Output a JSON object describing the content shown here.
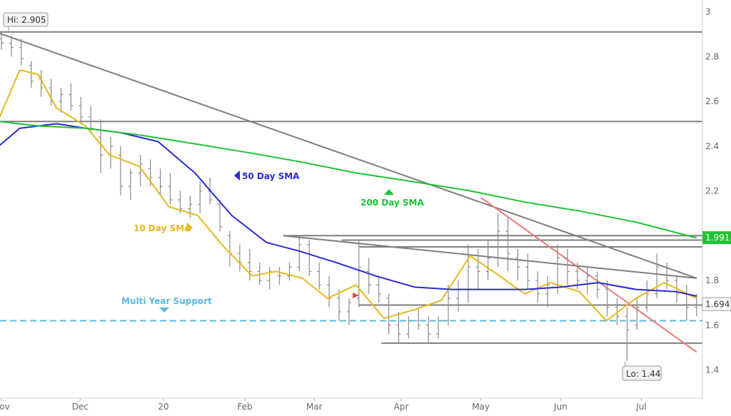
{
  "chart_data": {
    "type": "line",
    "title": "",
    "xlabel": "",
    "ylabel": "",
    "x_ticks": [
      "Nov",
      "Dec",
      "20",
      "Feb",
      "Mar",
      "Apr",
      "May",
      "Jun",
      "Jul"
    ],
    "y_ticks": [
      "3",
      "2.8",
      "2.6",
      "2.4",
      "2.2",
      "1.8",
      "1.6",
      "1.4"
    ],
    "ylim": [
      1.3,
      3.02
    ],
    "grid": false,
    "price_bars_ohlc": [
      [
        2.88,
        2.91,
        2.83,
        2.86
      ],
      [
        2.86,
        2.89,
        2.8,
        2.84
      ],
      [
        2.84,
        2.88,
        2.76,
        2.79
      ],
      [
        2.76,
        2.78,
        2.66,
        2.69
      ],
      [
        2.7,
        2.74,
        2.62,
        2.66
      ],
      [
        2.66,
        2.7,
        2.58,
        2.6
      ],
      [
        2.6,
        2.66,
        2.55,
        2.63
      ],
      [
        2.63,
        2.68,
        2.56,
        2.58
      ],
      [
        2.58,
        2.62,
        2.5,
        2.53
      ],
      [
        2.53,
        2.58,
        2.46,
        2.48
      ],
      [
        2.44,
        2.52,
        2.28,
        2.36
      ],
      [
        2.36,
        2.44,
        2.3,
        2.4
      ],
      [
        2.36,
        2.4,
        2.18,
        2.22
      ],
      [
        2.22,
        2.3,
        2.16,
        2.28
      ],
      [
        2.28,
        2.36,
        2.22,
        2.32
      ],
      [
        2.3,
        2.34,
        2.22,
        2.26
      ],
      [
        2.26,
        2.3,
        2.18,
        2.22
      ],
      [
        2.22,
        2.28,
        2.14,
        2.16
      ],
      [
        2.16,
        2.2,
        2.1,
        2.12
      ],
      [
        2.12,
        2.18,
        2.08,
        2.14
      ],
      [
        2.14,
        2.24,
        2.1,
        2.2
      ],
      [
        2.2,
        2.26,
        2.14,
        2.16
      ],
      [
        2.14,
        2.16,
        2.02,
        2.04
      ],
      [
        2.0,
        2.02,
        1.86,
        1.92
      ],
      [
        1.92,
        1.96,
        1.84,
        1.88
      ],
      [
        1.88,
        1.94,
        1.8,
        1.84
      ],
      [
        1.84,
        1.88,
        1.78,
        1.8
      ],
      [
        1.8,
        1.86,
        1.76,
        1.84
      ],
      [
        1.82,
        1.86,
        1.78,
        1.82
      ],
      [
        1.82,
        1.88,
        1.8,
        1.86
      ],
      [
        1.86,
        2.0,
        1.84,
        1.96
      ],
      [
        1.96,
        1.98,
        1.82,
        1.84
      ],
      [
        1.84,
        1.88,
        1.76,
        1.78
      ],
      [
        1.78,
        1.82,
        1.68,
        1.72
      ],
      [
        1.72,
        1.76,
        1.62,
        1.66
      ],
      [
        1.66,
        1.72,
        1.6,
        1.7
      ],
      [
        1.72,
        1.98,
        1.68,
        1.86
      ],
      [
        1.84,
        1.9,
        1.74,
        1.78
      ],
      [
        1.78,
        1.82,
        1.7,
        1.74
      ],
      [
        1.72,
        1.74,
        1.56,
        1.6
      ],
      [
        1.6,
        1.66,
        1.52,
        1.56
      ],
      [
        1.56,
        1.64,
        1.54,
        1.62
      ],
      [
        1.62,
        1.68,
        1.58,
        1.6
      ],
      [
        1.6,
        1.64,
        1.52,
        1.56
      ],
      [
        1.56,
        1.64,
        1.54,
        1.62
      ],
      [
        1.62,
        1.78,
        1.6,
        1.72
      ],
      [
        1.72,
        1.8,
        1.66,
        1.76
      ],
      [
        1.76,
        1.96,
        1.7,
        1.86
      ],
      [
        1.86,
        1.94,
        1.76,
        1.84
      ],
      [
        1.84,
        1.98,
        1.8,
        1.9
      ],
      [
        1.9,
        2.1,
        1.86,
        2.02
      ],
      [
        2.02,
        2.08,
        1.84,
        1.92
      ],
      [
        1.9,
        1.94,
        1.8,
        1.86
      ],
      [
        1.86,
        1.92,
        1.76,
        1.8
      ],
      [
        1.8,
        1.84,
        1.7,
        1.74
      ],
      [
        1.74,
        1.82,
        1.68,
        1.78
      ],
      [
        1.78,
        1.96,
        1.74,
        1.9
      ],
      [
        1.9,
        1.94,
        1.78,
        1.84
      ],
      [
        1.84,
        1.88,
        1.76,
        1.8
      ],
      [
        1.8,
        1.86,
        1.74,
        1.82
      ],
      [
        1.82,
        1.84,
        1.72,
        1.76
      ],
      [
        1.76,
        1.8,
        1.64,
        1.68
      ],
      [
        1.68,
        1.72,
        1.6,
        1.64
      ],
      [
        1.64,
        1.68,
        1.44,
        1.58
      ],
      [
        1.6,
        1.72,
        1.58,
        1.68
      ],
      [
        1.68,
        1.8,
        1.66,
        1.74
      ],
      [
        1.74,
        1.92,
        1.72,
        1.86
      ],
      [
        1.86,
        1.88,
        1.76,
        1.8
      ],
      [
        1.8,
        1.82,
        1.7,
        1.74
      ],
      [
        1.74,
        1.78,
        1.62,
        1.68
      ],
      [
        1.68,
        1.74,
        1.64,
        1.69
      ]
    ],
    "series": [
      {
        "name": "10 Day SMA",
        "color": "#e5b81f",
        "x": [
          "2019-10-31",
          "2019-11-08",
          "2019-11-15",
          "2019-11-22",
          "2019-12-03",
          "2019-12-12",
          "2019-12-23",
          "2020-01-03",
          "2020-01-14",
          "2020-01-24",
          "2020-02-04",
          "2020-02-14",
          "2020-02-25",
          "2020-03-06",
          "2020-03-16",
          "2020-03-26",
          "2020-04-06",
          "2020-04-16",
          "2020-04-27",
          "2020-05-07",
          "2020-05-18",
          "2020-05-28",
          "2020-06-08",
          "2020-06-18",
          "2020-06-29",
          "2020-07-09",
          "2020-07-20"
        ],
        "values": [
          2.52,
          2.74,
          2.72,
          2.57,
          2.49,
          2.36,
          2.31,
          2.13,
          2.09,
          1.95,
          1.82,
          1.84,
          1.81,
          1.72,
          1.78,
          1.63,
          1.67,
          1.71,
          1.91,
          1.83,
          1.74,
          1.79,
          1.75,
          1.62,
          1.72,
          1.79,
          1.72
        ]
      },
      {
        "name": "50 Day SMA",
        "color": "#2b2bd1",
        "x": [
          "2019-10-31",
          "2019-11-08",
          "2019-11-22",
          "2019-12-03",
          "2019-12-16",
          "2019-12-30",
          "2020-01-13",
          "2020-01-27",
          "2020-02-10",
          "2020-02-24",
          "2020-03-09",
          "2020-03-23",
          "2020-04-06",
          "2020-04-20",
          "2020-05-04",
          "2020-05-18",
          "2020-06-01",
          "2020-06-15",
          "2020-06-29",
          "2020-07-13",
          "2020-07-20"
        ],
        "values": [
          2.4,
          2.48,
          2.5,
          2.48,
          2.46,
          2.42,
          2.28,
          2.09,
          1.97,
          1.93,
          1.88,
          1.82,
          1.77,
          1.76,
          1.76,
          1.76,
          1.77,
          1.79,
          1.76,
          1.75,
          1.73
        ]
      },
      {
        "name": "200 Day SMA",
        "color": "#1fc433",
        "x": [
          "2019-10-31",
          "2019-11-15",
          "2019-12-03",
          "2019-12-23",
          "2020-01-13",
          "2020-02-03",
          "2020-02-24",
          "2020-03-16",
          "2020-04-06",
          "2020-04-27",
          "2020-05-18",
          "2020-06-08",
          "2020-06-29",
          "2020-07-20"
        ],
        "values": [
          2.51,
          2.49,
          2.48,
          2.45,
          2.41,
          2.37,
          2.33,
          2.28,
          2.24,
          2.2,
          2.15,
          2.11,
          2.06,
          1.99
        ]
      }
    ],
    "trendlines": [
      {
        "from": [
          "2019-10-31",
          2.905
        ],
        "to": [
          "2020-07-20",
          1.81
        ],
        "color": "#7f7f7f"
      },
      {
        "from": [
          "2020-02-17",
          2.0
        ],
        "to": [
          "2020-07-20",
          1.81
        ],
        "color": "#7f7f7f"
      },
      {
        "from": [
          "2020-05-01",
          2.17
        ],
        "to": [
          "2020-07-20",
          1.48
        ],
        "color": "#e87a7a"
      }
    ],
    "levels": [
      {
        "y": 2.91,
        "color": "#7f7f7f"
      },
      {
        "y": 2.51,
        "color": "#7f7f7f"
      },
      {
        "y": 2.0,
        "color": "#7f7f7f",
        "from": "2020-02-17"
      },
      {
        "y": 1.98,
        "color": "#7f7f7f",
        "from": "2020-03-11"
      },
      {
        "y": 1.95,
        "color": "#7f7f7f",
        "from": "2020-03-17"
      },
      {
        "y": 1.69,
        "color": "#7f7f7f",
        "from": "2020-03-17"
      },
      {
        "y": 1.52,
        "color": "#7f7f7f",
        "from": "2020-03-25"
      },
      {
        "y": 1.62,
        "color": "#5bb8e0",
        "dashed": true
      }
    ],
    "annotations": [
      {
        "text": "10 Day SMA",
        "color": "#e5b81f",
        "marker": "arrow-right"
      },
      {
        "text": "50 Day SMA",
        "color": "#2b2bd1",
        "marker": "arrow-left"
      },
      {
        "text": "200 Day SMA",
        "color": "#1fc433",
        "marker": "arrow-up"
      },
      {
        "text": "Multi Year Support",
        "color": "#5bb8e0",
        "marker": "arrow-down"
      }
    ],
    "hi_label": "Hi: 2.905",
    "lo_label": "Lo: 1.44",
    "price_tags": [
      {
        "value": "1.991",
        "bg": "#1fc433",
        "fg": "#ffffff"
      },
      {
        "value": "1.694",
        "bg": "#ffffff",
        "fg": "#333333"
      }
    ],
    "colors": {
      "bars": "#8a8a8a",
      "axis_text": "#666666",
      "axis_bg": "#ffffff"
    }
  }
}
